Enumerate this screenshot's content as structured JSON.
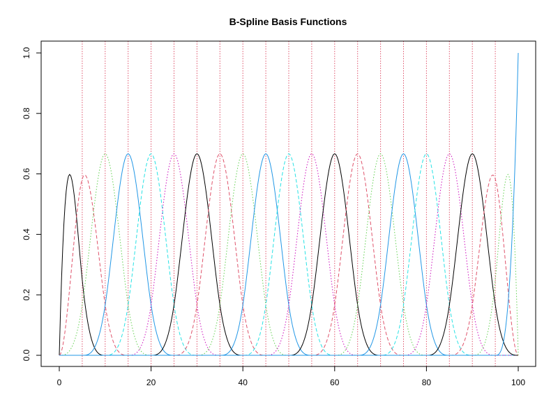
{
  "chart_data": {
    "type": "line",
    "title": "B-Spline Basis Functions",
    "xlabel": "",
    "ylabel": "",
    "xlim": [
      0,
      100
    ],
    "ylim": [
      0,
      1
    ],
    "x_ticks": [
      0,
      20,
      40,
      60,
      80,
      100
    ],
    "y_ticks": [
      0.0,
      0.2,
      0.4,
      0.6,
      0.8,
      1.0
    ],
    "x_tick_labels": [
      "0",
      "20",
      "40",
      "60",
      "80",
      "100"
    ],
    "y_tick_labels": [
      "0.0",
      "0.2",
      "0.4",
      "0.6",
      "0.8",
      "1.0"
    ],
    "degree": 3,
    "interior_knots": [
      5,
      10,
      15,
      20,
      25,
      30,
      35,
      40,
      45,
      50,
      55,
      60,
      65,
      70,
      75,
      80,
      85,
      90,
      95
    ],
    "boundary_knots": [
      0,
      100
    ],
    "knot_line_color": "#DF536B",
    "series_colors": [
      "#000000",
      "#DF536B",
      "#61D04F",
      "#2297E6",
      "#28E2E5",
      "#CD0BBC"
    ],
    "series_dash": [
      "solid",
      "dashed",
      "dotted",
      "solid",
      "dashed",
      "dotted"
    ],
    "grid": false,
    "legend": "none"
  }
}
